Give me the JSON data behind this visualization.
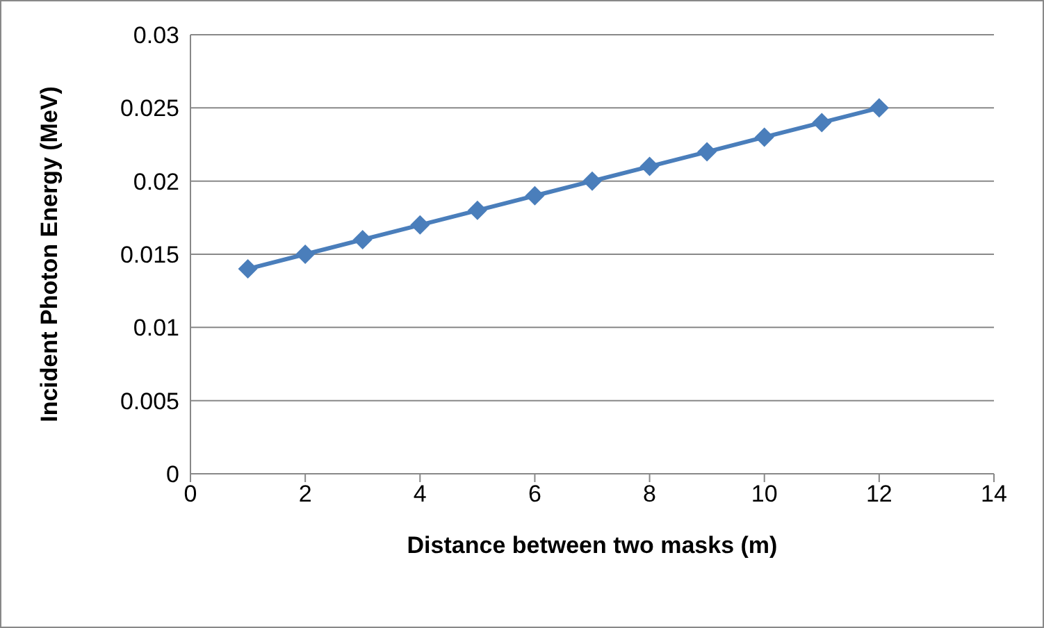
{
  "chart_data": {
    "type": "line",
    "xlabel": "Distance between two masks (m)",
    "ylabel": "Incident Photon Energy (MeV)",
    "x": [
      1,
      2,
      3,
      4,
      5,
      6,
      7,
      8,
      9,
      10,
      11,
      12
    ],
    "series": [
      {
        "color": "#4a7ebb",
        "values": [
          0.014,
          0.015,
          0.016,
          0.017,
          0.018,
          0.019,
          0.02,
          0.021,
          0.022,
          0.023,
          0.024,
          0.025
        ]
      }
    ],
    "xlim": [
      0,
      14
    ],
    "xticks": [
      0,
      2,
      4,
      6,
      8,
      10,
      12,
      14
    ],
    "ylim": [
      0,
      0.03
    ],
    "yticks": [
      0,
      0.005,
      0.01,
      0.015,
      0.02,
      0.025,
      0.03
    ],
    "grid": "y",
    "legend": false,
    "marker": "diamond",
    "line_style": "solid"
  }
}
